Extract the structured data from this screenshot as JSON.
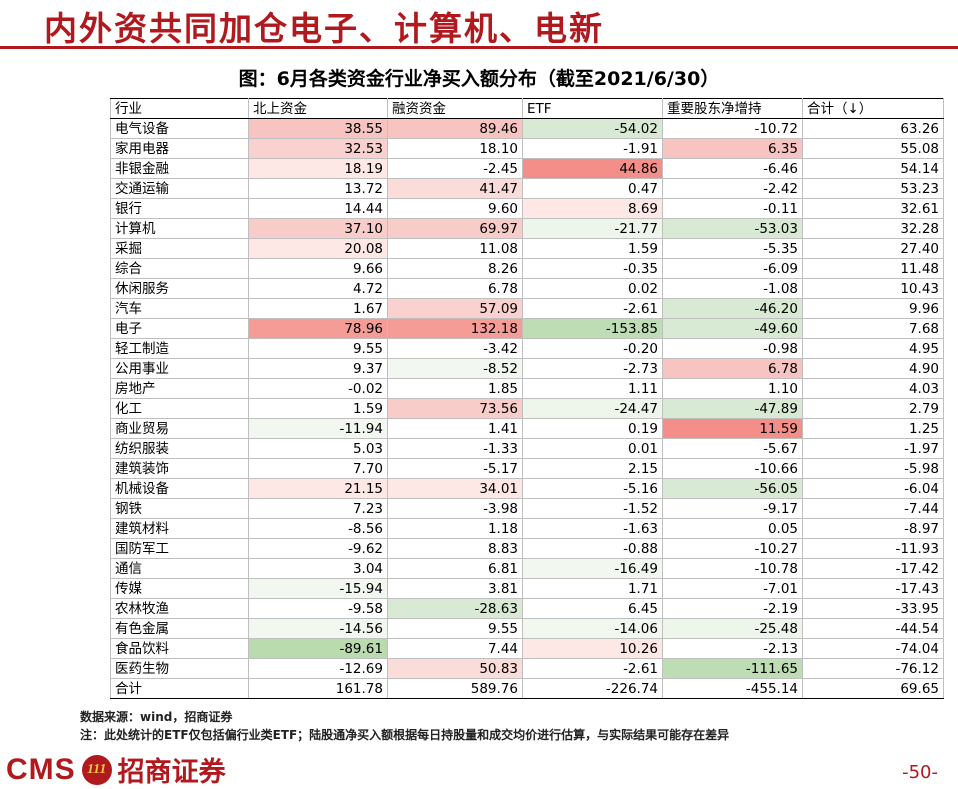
{
  "page_title": "内外资共同加仓电子、计算机、电新",
  "chart_title": "图：6月各类资金行业净买入额分布（截至2021/6/30）",
  "chart_data": {
    "type": "table",
    "columns": [
      "行业",
      "北上资金",
      "融资资金",
      "ETF",
      "重要股东净增持",
      "合计（↓）"
    ],
    "rows": [
      {
        "industry": "电气设备",
        "values": [
          "38.55",
          "89.46",
          "-54.02",
          "-10.72",
          "63.26"
        ],
        "colors": [
          "#f7c4c1",
          "#f7c4c1",
          "#d8ead3",
          "#ffffff",
          "#ffffff"
        ]
      },
      {
        "industry": "家用电器",
        "values": [
          "32.53",
          "18.10",
          "-1.91",
          "6.35",
          "55.08"
        ],
        "colors": [
          "#f9d2cf",
          "#ffffff",
          "#ffffff",
          "#f7c4c1",
          "#ffffff"
        ]
      },
      {
        "industry": "非银金融",
        "values": [
          "18.19",
          "-2.45",
          "44.86",
          "-6.46",
          "54.14"
        ],
        "colors": [
          "#fde8e6",
          "#ffffff",
          "#f38e88",
          "#ffffff",
          "#ffffff"
        ]
      },
      {
        "industry": "交通运输",
        "values": [
          "13.72",
          "41.47",
          "0.47",
          "-2.42",
          "53.23"
        ],
        "colors": [
          "#ffffff",
          "#fadcd9",
          "#ffffff",
          "#ffffff",
          "#ffffff"
        ]
      },
      {
        "industry": "银行",
        "values": [
          "14.44",
          "9.60",
          "8.69",
          "-0.11",
          "32.61"
        ],
        "colors": [
          "#ffffff",
          "#ffffff",
          "#fde8e6",
          "#ffffff",
          "#ffffff"
        ]
      },
      {
        "industry": "计算机",
        "values": [
          "37.10",
          "69.97",
          "-21.77",
          "-53.03",
          "32.28"
        ],
        "colors": [
          "#f8ccc9",
          "#f8ccc9",
          "#eef6ec",
          "#d8ead3",
          "#ffffff"
        ]
      },
      {
        "industry": "采掘",
        "values": [
          "20.08",
          "11.08",
          "1.59",
          "-5.35",
          "27.40"
        ],
        "colors": [
          "#fde8e6",
          "#ffffff",
          "#ffffff",
          "#ffffff",
          "#ffffff"
        ]
      },
      {
        "industry": "综合",
        "values": [
          "9.66",
          "8.26",
          "-0.35",
          "-6.09",
          "11.48"
        ],
        "colors": [
          "#ffffff",
          "#ffffff",
          "#ffffff",
          "#ffffff",
          "#ffffff"
        ]
      },
      {
        "industry": "休闲服务",
        "values": [
          "4.72",
          "6.78",
          "0.02",
          "-1.08",
          "10.43"
        ],
        "colors": [
          "#ffffff",
          "#ffffff",
          "#ffffff",
          "#ffffff",
          "#ffffff"
        ]
      },
      {
        "industry": "汽车",
        "values": [
          "1.67",
          "57.09",
          "-2.61",
          "-46.20",
          "9.96"
        ],
        "colors": [
          "#ffffff",
          "#f9d2cf",
          "#ffffff",
          "#d8ead3",
          "#ffffff"
        ]
      },
      {
        "industry": "电子",
        "values": [
          "78.96",
          "132.18",
          "-153.85",
          "-49.60",
          "7.68"
        ],
        "colors": [
          "#f59c97",
          "#f59c97",
          "#bfddb5",
          "#d8ead3",
          "#ffffff"
        ]
      },
      {
        "industry": "轻工制造",
        "values": [
          "9.55",
          "-3.42",
          "-0.20",
          "-0.98",
          "4.95"
        ],
        "colors": [
          "#ffffff",
          "#ffffff",
          "#ffffff",
          "#ffffff",
          "#ffffff"
        ]
      },
      {
        "industry": "公用事业",
        "values": [
          "9.37",
          "-8.52",
          "-2.73",
          "6.78",
          "4.90"
        ],
        "colors": [
          "#ffffff",
          "#f2f8f0",
          "#ffffff",
          "#f7c4c1",
          "#ffffff"
        ]
      },
      {
        "industry": "房地产",
        "values": [
          "-0.02",
          "1.85",
          "1.11",
          "1.10",
          "4.03"
        ],
        "colors": [
          "#ffffff",
          "#ffffff",
          "#ffffff",
          "#ffffff",
          "#ffffff"
        ]
      },
      {
        "industry": "化工",
        "values": [
          "1.59",
          "73.56",
          "-24.47",
          "-47.89",
          "2.79"
        ],
        "colors": [
          "#ffffff",
          "#f8ccc9",
          "#eef6ec",
          "#d8ead3",
          "#ffffff"
        ]
      },
      {
        "industry": "商业贸易",
        "values": [
          "-11.94",
          "1.41",
          "0.19",
          "11.59",
          "1.25"
        ],
        "colors": [
          "#f2f8f0",
          "#ffffff",
          "#ffffff",
          "#f38e88",
          "#ffffff"
        ]
      },
      {
        "industry": "纺织服装",
        "values": [
          "5.03",
          "-1.33",
          "0.01",
          "-5.67",
          "-1.97"
        ],
        "colors": [
          "#ffffff",
          "#ffffff",
          "#ffffff",
          "#ffffff",
          "#ffffff"
        ]
      },
      {
        "industry": "建筑装饰",
        "values": [
          "7.70",
          "-5.17",
          "2.15",
          "-10.66",
          "-5.98"
        ],
        "colors": [
          "#ffffff",
          "#ffffff",
          "#ffffff",
          "#ffffff",
          "#ffffff"
        ]
      },
      {
        "industry": "机械设备",
        "values": [
          "21.15",
          "34.01",
          "-5.16",
          "-56.05",
          "-6.04"
        ],
        "colors": [
          "#fde8e6",
          "#fde8e6",
          "#ffffff",
          "#d8ead3",
          "#ffffff"
        ]
      },
      {
        "industry": "钢铁",
        "values": [
          "7.23",
          "-3.98",
          "-1.52",
          "-9.17",
          "-7.44"
        ],
        "colors": [
          "#ffffff",
          "#ffffff",
          "#ffffff",
          "#ffffff",
          "#ffffff"
        ]
      },
      {
        "industry": "建筑材料",
        "values": [
          "-8.56",
          "1.18",
          "-1.63",
          "0.05",
          "-8.97"
        ],
        "colors": [
          "#ffffff",
          "#ffffff",
          "#ffffff",
          "#ffffff",
          "#ffffff"
        ]
      },
      {
        "industry": "国防军工",
        "values": [
          "-9.62",
          "8.83",
          "-0.88",
          "-10.27",
          "-11.93"
        ],
        "colors": [
          "#ffffff",
          "#ffffff",
          "#ffffff",
          "#ffffff",
          "#ffffff"
        ]
      },
      {
        "industry": "通信",
        "values": [
          "3.04",
          "6.81",
          "-16.49",
          "-10.78",
          "-17.42"
        ],
        "colors": [
          "#ffffff",
          "#ffffff",
          "#f2f8f0",
          "#ffffff",
          "#ffffff"
        ]
      },
      {
        "industry": "传媒",
        "values": [
          "-15.94",
          "3.81",
          "1.71",
          "-7.01",
          "-17.43"
        ],
        "colors": [
          "#f2f8f0",
          "#ffffff",
          "#ffffff",
          "#ffffff",
          "#ffffff"
        ]
      },
      {
        "industry": "农林牧渔",
        "values": [
          "-9.58",
          "-28.63",
          "6.45",
          "-2.19",
          "-33.95"
        ],
        "colors": [
          "#ffffff",
          "#d8ead3",
          "#ffffff",
          "#ffffff",
          "#ffffff"
        ]
      },
      {
        "industry": "有色金属",
        "values": [
          "-14.56",
          "9.55",
          "-14.06",
          "-25.48",
          "-44.54"
        ],
        "colors": [
          "#f2f8f0",
          "#ffffff",
          "#f2f8f0",
          "#eef6ec",
          "#ffffff"
        ]
      },
      {
        "industry": "食品饮料",
        "values": [
          "-89.61",
          "7.44",
          "10.26",
          "-2.13",
          "-74.04"
        ],
        "colors": [
          "#b9dbae",
          "#ffffff",
          "#fde8e6",
          "#ffffff",
          "#ffffff"
        ]
      },
      {
        "industry": "医药生物",
        "values": [
          "-12.69",
          "50.83",
          "-2.61",
          "-111.65",
          "-76.12"
        ],
        "colors": [
          "#ffffff",
          "#fadcd9",
          "#ffffff",
          "#bfddb5",
          "#ffffff"
        ]
      }
    ],
    "total": {
      "industry": "合计",
      "values": [
        "161.78",
        "589.76",
        "-226.74",
        "-455.14",
        "69.65"
      ]
    }
  },
  "notes": {
    "source": "数据来源：wind，招商证券",
    "note": "注：此处统计的ETF仅包括偏行业类ETF；陆股通净买入额根据每日持股量和成交均价进行估算，与实际结果可能存在差异"
  },
  "logo": {
    "text": "CMS",
    "mark": "111",
    "cn": "招商证券"
  },
  "page_number": "-50-"
}
